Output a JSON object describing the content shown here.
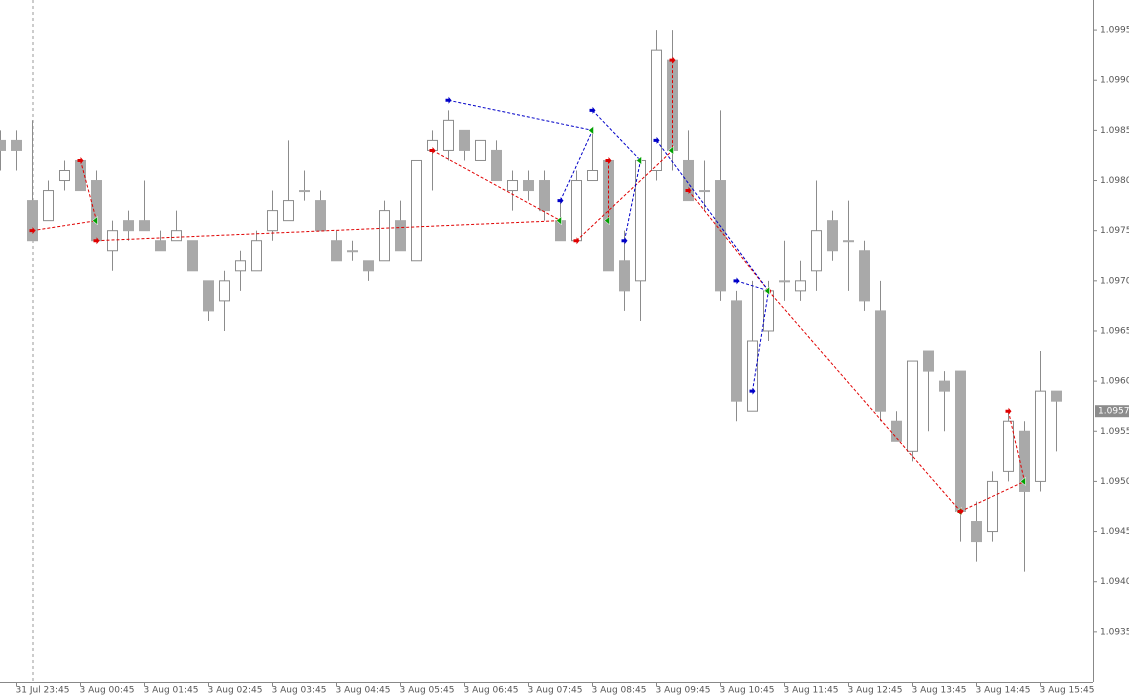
{
  "chart_data": {
    "type": "candlestick",
    "categories": [
      null,
      "31 Jul 23:45",
      null,
      null,
      null,
      "3 Aug 00:45",
      null,
      null,
      null,
      "3 Aug 01:45",
      null,
      null,
      null,
      "3 Aug 02:45",
      null,
      null,
      null,
      "3 Aug 03:45",
      null,
      null,
      null,
      "3 Aug 04:45",
      null,
      null,
      null,
      "3 Aug 05:45",
      null,
      null,
      null,
      "3 Aug 06:45",
      null,
      null,
      null,
      "3 Aug 07:45",
      null,
      null,
      null,
      "3 Aug 08:45",
      null,
      null,
      null,
      "3 Aug 09:45",
      null,
      null,
      null,
      "3 Aug 10:45",
      null,
      null,
      null,
      "3 Aug 11:45",
      null,
      null,
      null,
      "3 Aug 12:45",
      null,
      null,
      null,
      "3 Aug 13:45",
      null,
      null,
      null,
      "3 Aug 14:45",
      null,
      null,
      null,
      "3 Aug 15:45",
      null
    ],
    "open": [
      1.0984,
      1.0984,
      1.0978,
      1.0976,
      1.098,
      1.0982,
      1.098,
      1.0973,
      1.0976,
      1.0976,
      1.0974,
      1.0974,
      1.0974,
      1.097,
      1.0968,
      1.0971,
      1.0971,
      1.0975,
      1.0976,
      1.0979,
      1.0978,
      1.0974,
      1.0973,
      1.0972,
      1.0972,
      1.0976,
      1.0972,
      1.0983,
      1.0983,
      1.0985,
      1.0982,
      1.0983,
      1.0979,
      1.098,
      1.098,
      1.0976,
      1.0974,
      1.098,
      1.0982,
      1.0972,
      1.097,
      1.0981,
      1.0992,
      1.0982,
      1.0979,
      1.098,
      1.0968,
      1.0957,
      1.0965,
      1.097,
      1.0969,
      1.0971,
      1.0976,
      1.0974,
      1.0973,
      1.0967,
      1.0956,
      1.0953,
      1.0963,
      1.096,
      1.0961,
      1.0946,
      1.0945,
      1.0951,
      1.0955,
      1.095,
      1.0959
    ],
    "high": [
      1.0985,
      1.0985,
      1.0986,
      1.098,
      1.0982,
      1.0982,
      1.0981,
      1.0976,
      1.0977,
      1.098,
      1.0975,
      1.0977,
      1.0974,
      1.097,
      1.0971,
      1.0973,
      1.0975,
      1.0979,
      1.0984,
      1.0981,
      1.0979,
      1.0975,
      1.0974,
      1.0972,
      1.0978,
      1.0978,
      1.0982,
      1.0985,
      1.0987,
      1.0985,
      1.0984,
      1.0984,
      1.0981,
      1.0981,
      1.0981,
      1.0978,
      1.0981,
      1.0985,
      1.0982,
      1.0975,
      1.0982,
      1.0995,
      1.0995,
      1.0985,
      1.0982,
      1.0987,
      1.0969,
      1.097,
      1.097,
      1.0974,
      1.0972,
      1.098,
      1.0977,
      1.0978,
      1.0974,
      1.097,
      1.0957,
      1.0962,
      1.0963,
      1.0961,
      1.0961,
      1.0948,
      1.0951,
      1.0957,
      1.0956,
      1.0963,
      1.0959
    ],
    "low": [
      1.0981,
      1.0981,
      1.0974,
      1.0976,
      1.0979,
      1.0979,
      1.0974,
      1.0971,
      1.0974,
      1.0975,
      1.0973,
      1.0974,
      1.0971,
      1.0966,
      1.0965,
      1.0969,
      1.0971,
      1.0974,
      1.0976,
      1.0978,
      1.0975,
      1.0972,
      1.0972,
      1.097,
      1.0972,
      1.0973,
      1.0972,
      1.0979,
      1.0982,
      1.0982,
      1.0982,
      1.098,
      1.0977,
      1.0978,
      1.0976,
      1.0974,
      1.0974,
      1.098,
      1.0971,
      1.0967,
      1.0966,
      1.098,
      1.0981,
      1.0978,
      1.0977,
      1.0968,
      1.0956,
      1.0957,
      1.0964,
      1.0968,
      1.0968,
      1.0969,
      1.0972,
      1.0969,
      1.0967,
      1.0956,
      1.0954,
      1.0952,
      1.0955,
      1.0955,
      1.0944,
      1.0942,
      1.0944,
      1.095,
      1.0941,
      1.0949,
      1.0953
    ],
    "close": [
      1.0983,
      1.0983,
      1.0974,
      1.0979,
      1.0981,
      1.0979,
      1.0974,
      1.0975,
      1.0975,
      1.0975,
      1.0973,
      1.0975,
      1.0971,
      1.0967,
      1.097,
      1.0972,
      1.0974,
      1.0977,
      1.0978,
      1.0979,
      1.0975,
      1.0972,
      1.0973,
      1.0971,
      1.0977,
      1.0973,
      1.0982,
      1.0984,
      1.0986,
      1.0983,
      1.0984,
      1.098,
      1.098,
      1.0979,
      1.0977,
      1.0974,
      1.098,
      1.0981,
      1.0971,
      1.0969,
      1.0982,
      1.0993,
      1.0983,
      1.0978,
      1.0979,
      1.0969,
      1.0958,
      1.0964,
      1.0969,
      1.097,
      1.097,
      1.0975,
      1.0973,
      1.0974,
      1.0968,
      1.0957,
      1.0954,
      1.0962,
      1.0961,
      1.0959,
      1.0947,
      1.0944,
      1.095,
      1.0956,
      1.0949,
      1.0959,
      1.0958
    ],
    "bull_color": "#ffffff",
    "bear_color": "#a9a9a9",
    "outline_color": "#8c8c8c",
    "ylim": [
      1.093,
      1.0998
    ],
    "yticks": [
      {
        "value": 1.0935,
        "label": "1.0935"
      },
      {
        "value": 1.094,
        "label": "1.0940"
      },
      {
        "value": 1.0945,
        "label": "1.0945"
      },
      {
        "value": 1.095,
        "label": "1.0950"
      },
      {
        "value": 1.0955,
        "label": "1.0955"
      },
      {
        "value": 1.096,
        "label": "1.0960"
      },
      {
        "value": 1.0965,
        "label": "1.0965"
      },
      {
        "value": 1.097,
        "label": "1.0970"
      },
      {
        "value": 1.0975,
        "label": "1.0975"
      },
      {
        "value": 1.098,
        "label": "1.0980"
      },
      {
        "value": 1.0985,
        "label": "1.0985"
      },
      {
        "value": 1.099,
        "label": "1.0990"
      },
      {
        "value": 1.0995,
        "label": "1.0995"
      }
    ],
    "current_price": 1.0957,
    "close_marker_color": "#00a000",
    "trades": [
      {
        "color": "#e00000",
        "from": [
          2,
          1.0975
        ],
        "to": [
          6,
          1.0976
        ]
      },
      {
        "color": "#e00000",
        "from": [
          5,
          1.0982
        ],
        "to": [
          6,
          1.0976
        ]
      },
      {
        "color": "#e00000",
        "from": [
          6,
          1.0974
        ],
        "to": [
          35,
          1.0976
        ]
      },
      {
        "color": "#e00000",
        "from": [
          27,
          1.0983
        ],
        "to": [
          35,
          1.0976
        ]
      },
      {
        "color": "#e00000",
        "from": [
          36,
          1.0974
        ],
        "to": [
          42,
          1.0983
        ]
      },
      {
        "color": "#e00000",
        "from": [
          38,
          1.0982
        ],
        "to": [
          38,
          1.0976
        ]
      },
      {
        "color": "#e00000",
        "from": [
          42,
          1.0992
        ],
        "to": [
          42,
          1.0983
        ]
      },
      {
        "color": "#e00000",
        "from": [
          43,
          1.0979
        ],
        "to": [
          48,
          1.0969
        ]
      },
      {
        "color": "#e00000",
        "from": [
          48,
          1.0969
        ],
        "to": [
          60,
          1.0947
        ]
      },
      {
        "color": "#e00000",
        "from": [
          60,
          1.0947
        ],
        "to": [
          64,
          1.095
        ]
      },
      {
        "color": "#e00000",
        "from": [
          63,
          1.0957
        ],
        "to": [
          64,
          1.095
        ]
      },
      {
        "color": "#0000c8",
        "from": [
          28,
          1.0988
        ],
        "to": [
          37,
          1.0985
        ]
      },
      {
        "color": "#0000c8",
        "from": [
          37,
          1.0987
        ],
        "to": [
          40,
          1.0982
        ]
      },
      {
        "color": "#0000c8",
        "from": [
          35,
          1.0978
        ],
        "to": [
          37,
          1.0985
        ]
      },
      {
        "color": "#0000c8",
        "from": [
          39,
          1.0974
        ],
        "to": [
          40,
          1.0982
        ]
      },
      {
        "color": "#0000c8",
        "from": [
          41,
          1.0984
        ],
        "to": [
          48,
          1.0969
        ]
      },
      {
        "color": "#0000c8",
        "from": [
          46,
          1.097
        ],
        "to": [
          48,
          1.0969
        ]
      },
      {
        "color": "#0000c8",
        "from": [
          47,
          1.0959
        ],
        "to": [
          48,
          1.0969
        ]
      }
    ]
  }
}
